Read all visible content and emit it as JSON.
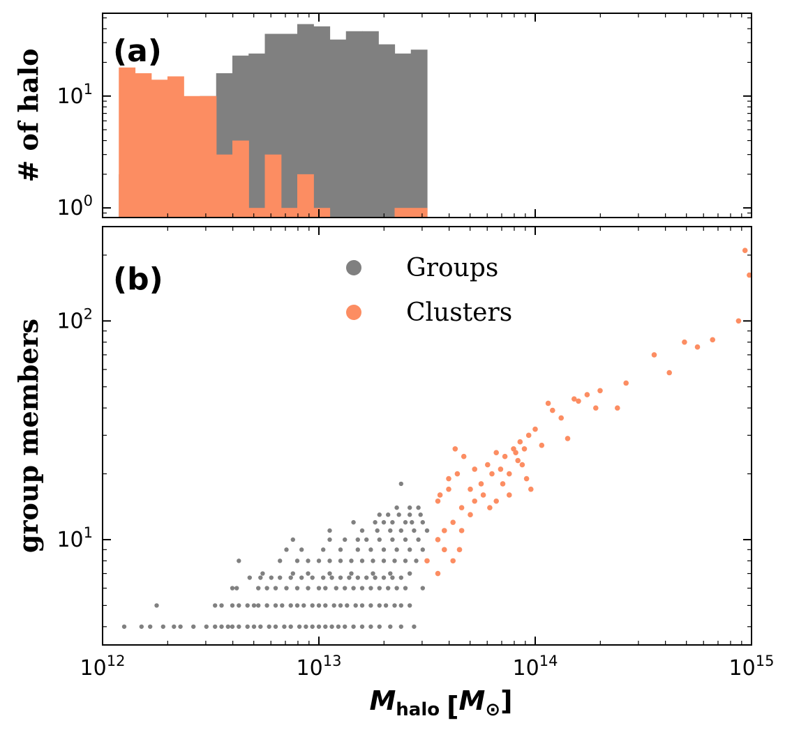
{
  "chart_data": [
    {
      "panel": "(a)",
      "type": "bar",
      "subtype": "histogram",
      "xscale": "log",
      "yscale": "log",
      "xlim": [
        1000000000000.0,
        1000000000000000.0
      ],
      "ylim": [
        0.82,
        55
      ],
      "ylabel": "# of halo",
      "x_tick_labels": [],
      "y_tick_labels": [
        {
          "value": 1,
          "mantissa": "10",
          "exp": "0"
        },
        {
          "value": 10,
          "mantissa": "10",
          "exp": "1"
        }
      ],
      "bin_edges_log10": [
        12.075,
        12.15,
        12.225,
        12.3,
        12.375,
        12.45,
        12.525,
        12.6,
        12.675,
        12.75,
        12.825,
        12.9,
        12.975,
        13.05,
        13.125,
        13.2,
        13.275,
        13.35,
        13.425,
        13.5,
        13.575,
        13.65,
        13.725,
        13.8,
        13.875,
        13.95,
        14.025,
        14.1,
        14.175,
        14.25,
        14.325,
        14.4,
        14.475,
        14.55,
        14.625,
        14.7,
        14.775,
        14.85,
        14.925
      ],
      "series": [
        {
          "name": "Groups",
          "color": "#808080",
          "counts": [
            2,
            2,
            3,
            6,
            5,
            10,
            16,
            23,
            24,
            36,
            36,
            44,
            42,
            32,
            38,
            38,
            29,
            24,
            26
          ]
        },
        {
          "name": "Clusters",
          "color": "#fc8d62",
          "counts": [
            18,
            16,
            14,
            15,
            10,
            10,
            3,
            4,
            1,
            3,
            1,
            2,
            1,
            0,
            0,
            0,
            0,
            1,
            1
          ]
        }
      ]
    },
    {
      "panel": "(b)",
      "type": "scatter",
      "xscale": "log",
      "yscale": "log",
      "xlim": [
        1000000000000.0,
        1000000000000000.0
      ],
      "ylim": [
        3.3,
        270
      ],
      "ylabel": "group members",
      "xlabel": {
        "symbol": "M",
        "subscript": "halo",
        "unit_open": "[",
        "unit_symbol": "M",
        "unit_subscript": "⊙",
        "unit_close": "]"
      },
      "x_tick_labels": [
        {
          "value": 1000000000000.0,
          "mantissa": "10",
          "exp": "12"
        },
        {
          "value": 10000000000000.0,
          "mantissa": "10",
          "exp": "13"
        },
        {
          "value": 100000000000000.0,
          "mantissa": "10",
          "exp": "14"
        },
        {
          "value": 1000000000000000.0,
          "mantissa": "10",
          "exp": "15"
        }
      ],
      "y_tick_labels": [
        {
          "value": 10,
          "mantissa": "10",
          "exp": "1"
        },
        {
          "value": 100,
          "mantissa": "10",
          "exp": "2"
        }
      ],
      "legend": {
        "placement": "upper-center"
      },
      "series": [
        {
          "name": "Groups",
          "color": "#808080",
          "points": [
            [
              12.1,
              4
            ],
            [
              12.18,
              4
            ],
            [
              12.22,
              4
            ],
            [
              12.28,
              4
            ],
            [
              12.33,
              4
            ],
            [
              12.36,
              4
            ],
            [
              12.42,
              4
            ],
            [
              12.48,
              4
            ],
            [
              12.52,
              4
            ],
            [
              12.55,
              4
            ],
            [
              12.58,
              4
            ],
            [
              12.6,
              4
            ],
            [
              12.63,
              4
            ],
            [
              12.67,
              4
            ],
            [
              12.7,
              4
            ],
            [
              12.73,
              4
            ],
            [
              12.77,
              4
            ],
            [
              12.8,
              4
            ],
            [
              12.84,
              4
            ],
            [
              12.87,
              4
            ],
            [
              12.91,
              4
            ],
            [
              12.94,
              4
            ],
            [
              12.97,
              4
            ],
            [
              13.0,
              4
            ],
            [
              13.03,
              4
            ],
            [
              13.06,
              4
            ],
            [
              13.09,
              4
            ],
            [
              13.12,
              4
            ],
            [
              13.16,
              4
            ],
            [
              13.2,
              4
            ],
            [
              13.24,
              4
            ],
            [
              13.28,
              4
            ],
            [
              13.33,
              4
            ],
            [
              13.38,
              4
            ],
            [
              13.44,
              4
            ],
            [
              12.25,
              5
            ],
            [
              12.52,
              5
            ],
            [
              12.55,
              5
            ],
            [
              12.6,
              5
            ],
            [
              12.63,
              5
            ],
            [
              12.67,
              5
            ],
            [
              12.7,
              5
            ],
            [
              12.72,
              5
            ],
            [
              12.76,
              5
            ],
            [
              12.8,
              5
            ],
            [
              12.83,
              5
            ],
            [
              12.87,
              5
            ],
            [
              12.9,
              5
            ],
            [
              12.93,
              5
            ],
            [
              12.97,
              5
            ],
            [
              13.0,
              5
            ],
            [
              13.03,
              5
            ],
            [
              13.07,
              5
            ],
            [
              13.1,
              5
            ],
            [
              13.13,
              5
            ],
            [
              13.17,
              5
            ],
            [
              13.2,
              5
            ],
            [
              13.24,
              5
            ],
            [
              13.28,
              5
            ],
            [
              13.31,
              5
            ],
            [
              13.35,
              5
            ],
            [
              13.38,
              5
            ],
            [
              13.42,
              5
            ],
            [
              12.6,
              6
            ],
            [
              12.62,
              6
            ],
            [
              12.72,
              6
            ],
            [
              12.76,
              6
            ],
            [
              12.8,
              6
            ],
            [
              12.85,
              6
            ],
            [
              12.9,
              6
            ],
            [
              12.95,
              6
            ],
            [
              13.0,
              6
            ],
            [
              13.03,
              6
            ],
            [
              13.08,
              6
            ],
            [
              13.12,
              6
            ],
            [
              13.16,
              6
            ],
            [
              13.2,
              6
            ],
            [
              13.24,
              6
            ],
            [
              13.28,
              6
            ],
            [
              13.32,
              6
            ],
            [
              13.36,
              6
            ],
            [
              13.4,
              6
            ],
            [
              13.48,
              6
            ],
            [
              12.68,
              6.7
            ],
            [
              12.73,
              6.7
            ],
            [
              12.78,
              6.7
            ],
            [
              12.82,
              6.7
            ],
            [
              12.87,
              6.7
            ],
            [
              12.92,
              6.7
            ],
            [
              12.97,
              6.7
            ],
            [
              13.02,
              6.7
            ],
            [
              13.06,
              6.7
            ],
            [
              13.1,
              6.7
            ],
            [
              13.14,
              6.7
            ],
            [
              13.18,
              6.7
            ],
            [
              13.22,
              6.7
            ],
            [
              13.26,
              6.7
            ],
            [
              13.3,
              6.7
            ],
            [
              13.34,
              6.7
            ],
            [
              13.38,
              6.7
            ],
            [
              12.74,
              7
            ],
            [
              12.88,
              7
            ],
            [
              12.95,
              7
            ],
            [
              13.05,
              7
            ],
            [
              13.15,
              7
            ],
            [
              13.25,
              7
            ],
            [
              13.33,
              7
            ],
            [
              13.42,
              7
            ],
            [
              12.63,
              8
            ],
            [
              12.82,
              8
            ],
            [
              12.9,
              8
            ],
            [
              12.95,
              8
            ],
            [
              13.0,
              8
            ],
            [
              13.05,
              8
            ],
            [
              13.1,
              8
            ],
            [
              13.15,
              8
            ],
            [
              13.2,
              8
            ],
            [
              13.25,
              8
            ],
            [
              13.3,
              8
            ],
            [
              13.35,
              8
            ],
            [
              13.4,
              8
            ],
            [
              13.45,
              8
            ],
            [
              12.85,
              9
            ],
            [
              12.92,
              9
            ],
            [
              13.02,
              9
            ],
            [
              13.1,
              9
            ],
            [
              13.18,
              9
            ],
            [
              13.24,
              9
            ],
            [
              13.3,
              9
            ],
            [
              13.36,
              9
            ],
            [
              13.42,
              9
            ],
            [
              13.48,
              9
            ],
            [
              12.88,
              10
            ],
            [
              13.05,
              10
            ],
            [
              13.12,
              10
            ],
            [
              13.18,
              10
            ],
            [
              13.22,
              10
            ],
            [
              13.28,
              10
            ],
            [
              13.34,
              10
            ],
            [
              13.4,
              10
            ],
            [
              13.46,
              10
            ],
            [
              13.05,
              11
            ],
            [
              13.2,
              11
            ],
            [
              13.27,
              11
            ],
            [
              13.33,
              11
            ],
            [
              13.38,
              11
            ],
            [
              13.44,
              11
            ],
            [
              13.5,
              11
            ],
            [
              13.16,
              12
            ],
            [
              13.26,
              12
            ],
            [
              13.3,
              12
            ],
            [
              13.34,
              12
            ],
            [
              13.4,
              12
            ],
            [
              13.43,
              12
            ],
            [
              13.48,
              12
            ],
            [
              13.28,
              13
            ],
            [
              13.32,
              13
            ],
            [
              13.37,
              13
            ],
            [
              13.42,
              13
            ],
            [
              13.47,
              13
            ],
            [
              13.36,
              14
            ],
            [
              13.42,
              14
            ],
            [
              13.46,
              14
            ],
            [
              13.38,
              18
            ]
          ]
        },
        {
          "name": "Clusters",
          "color": "#fc8d62",
          "points": [
            [
              13.5,
              8
            ],
            [
              13.55,
              7
            ],
            [
              13.58,
              9
            ],
            [
              13.62,
              8
            ],
            [
              13.65,
              9
            ],
            [
              13.55,
              10
            ],
            [
              13.58,
              11
            ],
            [
              13.62,
              12
            ],
            [
              13.66,
              11
            ],
            [
              13.7,
              13
            ],
            [
              13.55,
              15
            ],
            [
              13.6,
              17
            ],
            [
              13.64,
              20
            ],
            [
              13.66,
              14
            ],
            [
              13.7,
              17
            ],
            [
              13.72,
              21
            ],
            [
              13.75,
              18
            ],
            [
              13.78,
              22
            ],
            [
              13.8,
              20
            ],
            [
              13.82,
              25
            ],
            [
              13.84,
              21
            ],
            [
              13.86,
              24
            ],
            [
              13.88,
              20
            ],
            [
              13.9,
              26
            ],
            [
              13.92,
              23
            ],
            [
              13.94,
              22
            ],
            [
              13.96,
              19
            ],
            [
              13.98,
              17
            ],
            [
              13.56,
              16
            ],
            [
              13.6,
              19
            ],
            [
              13.63,
              26
            ],
            [
              13.67,
              24
            ],
            [
              13.72,
              15
            ],
            [
              13.76,
              16
            ],
            [
              13.79,
              14
            ],
            [
              13.82,
              15
            ],
            [
              13.85,
              18
            ],
            [
              13.88,
              16
            ],
            [
              13.91,
              25
            ],
            [
              13.93,
              28
            ],
            [
              13.95,
              26
            ],
            [
              13.97,
              30
            ],
            [
              14.0,
              32
            ],
            [
              14.03,
              27
            ],
            [
              14.06,
              42
            ],
            [
              14.08,
              39
            ],
            [
              14.12,
              36
            ],
            [
              14.15,
              29
            ],
            [
              14.18,
              44
            ],
            [
              14.2,
              43
            ],
            [
              14.24,
              46
            ],
            [
              14.28,
              40
            ],
            [
              14.3,
              48
            ],
            [
              14.38,
              40
            ],
            [
              14.42,
              52
            ],
            [
              14.55,
              70
            ],
            [
              14.62,
              58
            ],
            [
              14.69,
              80
            ],
            [
              14.75,
              76
            ],
            [
              14.82,
              82
            ],
            [
              14.94,
              100
            ],
            [
              14.97,
              210
            ],
            [
              14.99,
              162
            ]
          ]
        }
      ]
    }
  ]
}
